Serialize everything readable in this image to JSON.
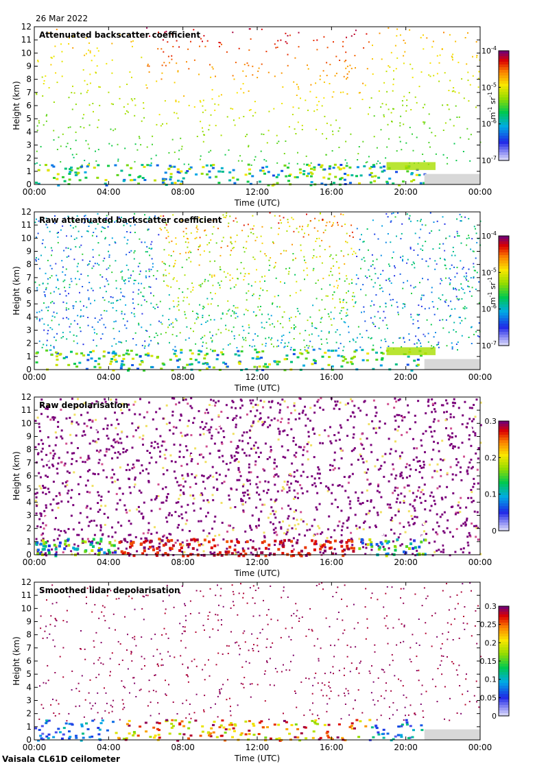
{
  "date": "26 Mar 2022",
  "footer": "Vaisala CL61D ceilometer",
  "chart_data": [
    {
      "type": "heatmap",
      "title": "Attenuated backscatter coefficient",
      "xlabel": "Time (UTC)",
      "ylabel": "Height (km)",
      "xticks": [
        "00:00",
        "04:00",
        "08:00",
        "12:00",
        "16:00",
        "20:00",
        "00:00"
      ],
      "yticks": [
        "0",
        "1",
        "2",
        "3",
        "4",
        "5",
        "6",
        "7",
        "8",
        "9",
        "10",
        "11",
        "12"
      ],
      "ylim": [
        0,
        12
      ],
      "colorbar": {
        "scale": "log",
        "range": [
          1e-07,
          0.0001
        ],
        "ticks": [
          {
            "base": "10",
            "exp": "-7"
          },
          {
            "base": "10",
            "exp": "-6"
          },
          {
            "base": "10",
            "exp": "-5"
          },
          {
            "base": "10",
            "exp": "-4"
          }
        ],
        "unit": {
          "a": "m",
          "a_exp": "-1",
          "b": "sr",
          "b_exp": "-1"
        }
      },
      "cloud_base_km": 1.2,
      "data_end_utc": "21:00"
    },
    {
      "type": "heatmap",
      "title": "Raw attenuated backscatter coefficient",
      "xlabel": "Time (UTC)",
      "ylabel": "Height (km)",
      "xticks": [
        "00:00",
        "04:00",
        "08:00",
        "12:00",
        "16:00",
        "20:00",
        "00:00"
      ],
      "yticks": [
        "0",
        "1",
        "2",
        "3",
        "4",
        "5",
        "6",
        "7",
        "8",
        "9",
        "10",
        "11",
        "12"
      ],
      "ylim": [
        0,
        12
      ],
      "colorbar": {
        "scale": "log",
        "range": [
          1e-07,
          0.0001
        ],
        "ticks": [
          {
            "base": "10",
            "exp": "-7"
          },
          {
            "base": "10",
            "exp": "-6"
          },
          {
            "base": "10",
            "exp": "-5"
          },
          {
            "base": "10",
            "exp": "-4"
          }
        ],
        "unit": {
          "a": "m",
          "a_exp": "-1",
          "b": "sr",
          "b_exp": "-1"
        }
      },
      "cloud_base_km": 1.2,
      "data_end_utc": "21:00"
    },
    {
      "type": "heatmap",
      "title": "Raw depolarisation",
      "xlabel": "Time (UTC)",
      "ylabel": "Height (km)",
      "xticks": [
        "00:00",
        "04:00",
        "08:00",
        "12:00",
        "16:00",
        "20:00",
        "00:00"
      ],
      "yticks": [
        "0",
        "1",
        "2",
        "3",
        "4",
        "5",
        "6",
        "7",
        "8",
        "9",
        "10",
        "11",
        "12"
      ],
      "ylim": [
        0,
        12
      ],
      "colorbar": {
        "scale": "linear",
        "range": [
          0,
          0.3
        ],
        "ticks": [
          "0",
          "0.1",
          "0.2",
          "0.3"
        ]
      },
      "cloud_base_km": 1.2,
      "data_end_utc": "21:00"
    },
    {
      "type": "heatmap",
      "title": "Smoothed lidar depolarisation",
      "xlabel": "Time (UTC)",
      "ylabel": "Height (km)",
      "xticks": [
        "00:00",
        "04:00",
        "08:00",
        "12:00",
        "16:00",
        "20:00",
        "00:00"
      ],
      "yticks": [
        "0",
        "1",
        "2",
        "3",
        "4",
        "5",
        "6",
        "7",
        "8",
        "9",
        "10",
        "11",
        "12"
      ],
      "ylim": [
        0,
        12
      ],
      "colorbar": {
        "scale": "linear",
        "range": [
          0,
          0.3
        ],
        "ticks": [
          "0",
          "0.05",
          "0.1",
          "0.15",
          "0.2",
          "0.25",
          "0.3"
        ]
      },
      "cloud_base_km": 1.2,
      "data_end_utc": "21:00"
    }
  ]
}
